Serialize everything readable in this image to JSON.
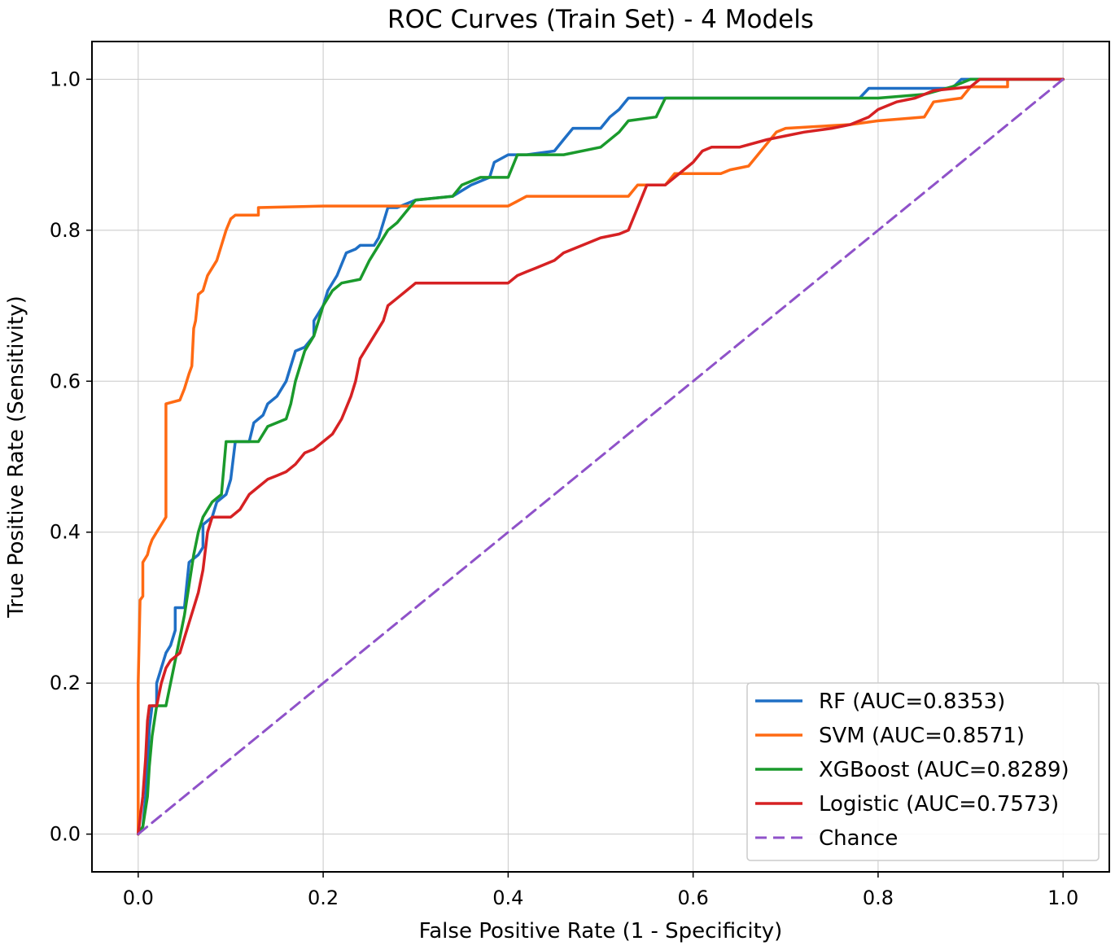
{
  "chart_data": {
    "type": "line",
    "title": "ROC Curves (Train Set) - 4 Models",
    "xlabel": "False Positive Rate (1 - Specificity)",
    "ylabel": "True Positive Rate (Sensitivity)",
    "xlim": [
      -0.05,
      1.05
    ],
    "ylim": [
      -0.05,
      1.05
    ],
    "xticks": [
      "0.0",
      "0.2",
      "0.4",
      "0.6",
      "0.8",
      "1.0"
    ],
    "yticks": [
      "0.0",
      "0.2",
      "0.4",
      "0.6",
      "0.8",
      "1.0"
    ],
    "grid": true,
    "legend_position": "lower-right",
    "series": [
      {
        "name": "RF (AUC=0.8353)",
        "color": "#1f6fc5",
        "dashed": false,
        "points": [
          [
            0,
            0
          ],
          [
            0.005,
            0.01
          ],
          [
            0.008,
            0.05
          ],
          [
            0.01,
            0.09
          ],
          [
            0.012,
            0.14
          ],
          [
            0.015,
            0.17
          ],
          [
            0.02,
            0.17
          ],
          [
            0.02,
            0.2
          ],
          [
            0.025,
            0.22
          ],
          [
            0.03,
            0.24
          ],
          [
            0.035,
            0.25
          ],
          [
            0.04,
            0.27
          ],
          [
            0.04,
            0.3
          ],
          [
            0.05,
            0.3
          ],
          [
            0.055,
            0.36
          ],
          [
            0.065,
            0.37
          ],
          [
            0.07,
            0.38
          ],
          [
            0.07,
            0.41
          ],
          [
            0.08,
            0.42
          ],
          [
            0.085,
            0.44
          ],
          [
            0.095,
            0.45
          ],
          [
            0.1,
            0.47
          ],
          [
            0.105,
            0.52
          ],
          [
            0.115,
            0.52
          ],
          [
            0.12,
            0.52
          ],
          [
            0.125,
            0.545
          ],
          [
            0.135,
            0.555
          ],
          [
            0.14,
            0.57
          ],
          [
            0.15,
            0.58
          ],
          [
            0.16,
            0.6
          ],
          [
            0.165,
            0.62
          ],
          [
            0.17,
            0.64
          ],
          [
            0.18,
            0.645
          ],
          [
            0.19,
            0.66
          ],
          [
            0.19,
            0.68
          ],
          [
            0.2,
            0.7
          ],
          [
            0.205,
            0.72
          ],
          [
            0.215,
            0.74
          ],
          [
            0.22,
            0.755
          ],
          [
            0.225,
            0.77
          ],
          [
            0.235,
            0.775
          ],
          [
            0.24,
            0.78
          ],
          [
            0.255,
            0.78
          ],
          [
            0.26,
            0.79
          ],
          [
            0.265,
            0.81
          ],
          [
            0.27,
            0.83
          ],
          [
            0.28,
            0.83
          ],
          [
            0.3,
            0.84
          ],
          [
            0.34,
            0.845
          ],
          [
            0.36,
            0.86
          ],
          [
            0.38,
            0.87
          ],
          [
            0.385,
            0.89
          ],
          [
            0.4,
            0.9
          ],
          [
            0.42,
            0.9
          ],
          [
            0.45,
            0.905
          ],
          [
            0.46,
            0.92
          ],
          [
            0.47,
            0.935
          ],
          [
            0.5,
            0.935
          ],
          [
            0.51,
            0.95
          ],
          [
            0.52,
            0.96
          ],
          [
            0.53,
            0.975
          ],
          [
            0.57,
            0.975
          ],
          [
            0.6,
            0.975
          ],
          [
            0.78,
            0.975
          ],
          [
            0.79,
            0.988
          ],
          [
            0.88,
            0.988
          ],
          [
            0.89,
            1.0
          ],
          [
            1.0,
            1.0
          ]
        ]
      },
      {
        "name": "SVM (AUC=0.8571)",
        "color": "#ff6a13",
        "dashed": false,
        "points": [
          [
            0,
            0
          ],
          [
            0,
            0.2
          ],
          [
            0.002,
            0.31
          ],
          [
            0.005,
            0.315
          ],
          [
            0.005,
            0.36
          ],
          [
            0.01,
            0.37
          ],
          [
            0.012,
            0.38
          ],
          [
            0.015,
            0.39
          ],
          [
            0.02,
            0.4
          ],
          [
            0.025,
            0.41
          ],
          [
            0.03,
            0.42
          ],
          [
            0.03,
            0.57
          ],
          [
            0.045,
            0.575
          ],
          [
            0.05,
            0.59
          ],
          [
            0.055,
            0.61
          ],
          [
            0.058,
            0.62
          ],
          [
            0.06,
            0.67
          ],
          [
            0.062,
            0.68
          ],
          [
            0.065,
            0.715
          ],
          [
            0.07,
            0.72
          ],
          [
            0.075,
            0.74
          ],
          [
            0.08,
            0.75
          ],
          [
            0.085,
            0.76
          ],
          [
            0.09,
            0.78
          ],
          [
            0.095,
            0.8
          ],
          [
            0.1,
            0.815
          ],
          [
            0.105,
            0.82
          ],
          [
            0.13,
            0.82
          ],
          [
            0.13,
            0.83
          ],
          [
            0.2,
            0.832
          ],
          [
            0.4,
            0.832
          ],
          [
            0.42,
            0.845
          ],
          [
            0.53,
            0.845
          ],
          [
            0.54,
            0.86
          ],
          [
            0.57,
            0.86
          ],
          [
            0.58,
            0.875
          ],
          [
            0.63,
            0.875
          ],
          [
            0.64,
            0.88
          ],
          [
            0.66,
            0.885
          ],
          [
            0.67,
            0.9
          ],
          [
            0.69,
            0.93
          ],
          [
            0.7,
            0.935
          ],
          [
            0.77,
            0.94
          ],
          [
            0.8,
            0.945
          ],
          [
            0.85,
            0.95
          ],
          [
            0.86,
            0.97
          ],
          [
            0.89,
            0.975
          ],
          [
            0.9,
            0.99
          ],
          [
            0.94,
            0.99
          ],
          [
            0.94,
            1.0
          ],
          [
            1.0,
            1.0
          ]
        ]
      },
      {
        "name": "XGBoost (AUC=0.8289)",
        "color": "#1a9a2c",
        "dashed": false,
        "points": [
          [
            0,
            0
          ],
          [
            0.005,
            0.01
          ],
          [
            0.01,
            0.05
          ],
          [
            0.012,
            0.09
          ],
          [
            0.015,
            0.13
          ],
          [
            0.02,
            0.17
          ],
          [
            0.03,
            0.17
          ],
          [
            0.035,
            0.2
          ],
          [
            0.04,
            0.23
          ],
          [
            0.045,
            0.26
          ],
          [
            0.05,
            0.29
          ],
          [
            0.055,
            0.33
          ],
          [
            0.06,
            0.37
          ],
          [
            0.065,
            0.4
          ],
          [
            0.07,
            0.42
          ],
          [
            0.08,
            0.44
          ],
          [
            0.09,
            0.45
          ],
          [
            0.095,
            0.52
          ],
          [
            0.13,
            0.52
          ],
          [
            0.14,
            0.54
          ],
          [
            0.16,
            0.55
          ],
          [
            0.165,
            0.57
          ],
          [
            0.17,
            0.6
          ],
          [
            0.18,
            0.64
          ],
          [
            0.19,
            0.66
          ],
          [
            0.2,
            0.7
          ],
          [
            0.21,
            0.72
          ],
          [
            0.22,
            0.73
          ],
          [
            0.24,
            0.735
          ],
          [
            0.25,
            0.76
          ],
          [
            0.26,
            0.78
          ],
          [
            0.27,
            0.8
          ],
          [
            0.28,
            0.81
          ],
          [
            0.3,
            0.84
          ],
          [
            0.34,
            0.845
          ],
          [
            0.35,
            0.86
          ],
          [
            0.37,
            0.87
          ],
          [
            0.4,
            0.87
          ],
          [
            0.41,
            0.9
          ],
          [
            0.46,
            0.9
          ],
          [
            0.5,
            0.91
          ],
          [
            0.52,
            0.93
          ],
          [
            0.53,
            0.945
          ],
          [
            0.56,
            0.95
          ],
          [
            0.57,
            0.975
          ],
          [
            0.6,
            0.975
          ],
          [
            0.8,
            0.975
          ],
          [
            0.85,
            0.98
          ],
          [
            0.88,
            0.99
          ],
          [
            0.9,
            1.0
          ],
          [
            1.0,
            1.0
          ]
        ]
      },
      {
        "name": "Logistic (AUC=0.7573)",
        "color": "#d62123",
        "dashed": false,
        "points": [
          [
            0,
            0
          ],
          [
            0.005,
            0.05
          ],
          [
            0.008,
            0.1
          ],
          [
            0.01,
            0.15
          ],
          [
            0.012,
            0.17
          ],
          [
            0.02,
            0.17
          ],
          [
            0.025,
            0.2
          ],
          [
            0.03,
            0.22
          ],
          [
            0.035,
            0.23
          ],
          [
            0.045,
            0.24
          ],
          [
            0.05,
            0.26
          ],
          [
            0.055,
            0.28
          ],
          [
            0.06,
            0.3
          ],
          [
            0.065,
            0.32
          ],
          [
            0.07,
            0.35
          ],
          [
            0.075,
            0.4
          ],
          [
            0.08,
            0.42
          ],
          [
            0.1,
            0.42
          ],
          [
            0.11,
            0.43
          ],
          [
            0.12,
            0.45
          ],
          [
            0.13,
            0.46
          ],
          [
            0.14,
            0.47
          ],
          [
            0.15,
            0.475
          ],
          [
            0.16,
            0.48
          ],
          [
            0.17,
            0.49
          ],
          [
            0.18,
            0.505
          ],
          [
            0.19,
            0.51
          ],
          [
            0.2,
            0.52
          ],
          [
            0.21,
            0.53
          ],
          [
            0.22,
            0.55
          ],
          [
            0.23,
            0.58
          ],
          [
            0.235,
            0.6
          ],
          [
            0.24,
            0.63
          ],
          [
            0.25,
            0.65
          ],
          [
            0.26,
            0.67
          ],
          [
            0.265,
            0.68
          ],
          [
            0.27,
            0.7
          ],
          [
            0.28,
            0.71
          ],
          [
            0.29,
            0.72
          ],
          [
            0.3,
            0.73
          ],
          [
            0.35,
            0.73
          ],
          [
            0.4,
            0.73
          ],
          [
            0.41,
            0.74
          ],
          [
            0.42,
            0.745
          ],
          [
            0.43,
            0.75
          ],
          [
            0.45,
            0.76
          ],
          [
            0.46,
            0.77
          ],
          [
            0.48,
            0.78
          ],
          [
            0.5,
            0.79
          ],
          [
            0.52,
            0.795
          ],
          [
            0.53,
            0.8
          ],
          [
            0.54,
            0.83
          ],
          [
            0.55,
            0.86
          ],
          [
            0.57,
            0.86
          ],
          [
            0.58,
            0.87
          ],
          [
            0.59,
            0.88
          ],
          [
            0.6,
            0.89
          ],
          [
            0.61,
            0.905
          ],
          [
            0.62,
            0.91
          ],
          [
            0.65,
            0.91
          ],
          [
            0.68,
            0.92
          ],
          [
            0.7,
            0.925
          ],
          [
            0.72,
            0.93
          ],
          [
            0.75,
            0.935
          ],
          [
            0.77,
            0.94
          ],
          [
            0.79,
            0.95
          ],
          [
            0.8,
            0.96
          ],
          [
            0.82,
            0.97
          ],
          [
            0.84,
            0.975
          ],
          [
            0.86,
            0.985
          ],
          [
            0.9,
            0.99
          ],
          [
            0.91,
            1.0
          ],
          [
            1.0,
            1.0
          ]
        ]
      },
      {
        "name": "Chance",
        "color": "#8f52c9",
        "dashed": true,
        "points": [
          [
            0,
            0
          ],
          [
            1,
            1
          ]
        ]
      }
    ]
  }
}
